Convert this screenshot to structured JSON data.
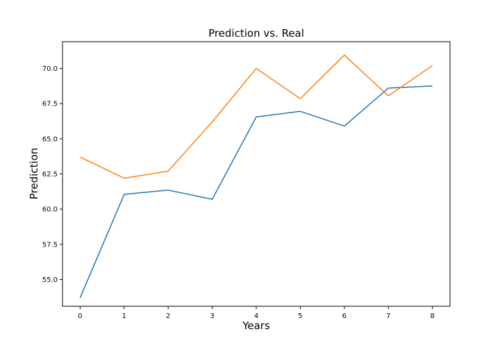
{
  "chart_data": {
    "type": "line",
    "title": "Prediction vs. Real",
    "xlabel": "Years",
    "ylabel": "Prediction",
    "x": [
      0,
      1,
      2,
      3,
      4,
      5,
      6,
      7,
      8
    ],
    "xticks": [
      "0",
      "1",
      "2",
      "3",
      "4",
      "5",
      "6",
      "7",
      "8"
    ],
    "yticks": [
      "55.0",
      "57.5",
      "60.0",
      "62.5",
      "65.0",
      "67.5",
      "70.0"
    ],
    "ytick_values": [
      55.0,
      57.5,
      60.0,
      62.5,
      65.0,
      67.5,
      70.0
    ],
    "xlim": [
      -0.4,
      8.4
    ],
    "ylim": [
      53.1,
      71.9
    ],
    "grid": false,
    "series": [
      {
        "color": "#1f77b4",
        "values": [
          53.7,
          61.05,
          61.35,
          60.7,
          66.55,
          66.95,
          65.9,
          68.6,
          68.75
        ]
      },
      {
        "color": "#ff7f0e",
        "values": [
          63.7,
          62.2,
          62.7,
          66.2,
          70.0,
          67.85,
          70.95,
          68.05,
          70.2
        ]
      }
    ]
  }
}
